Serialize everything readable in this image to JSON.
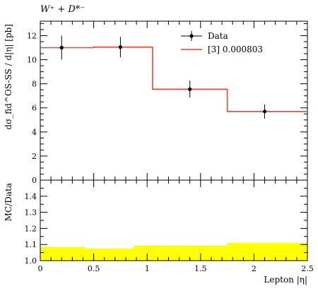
{
  "chart_data": [
    {
      "type": "line",
      "title": "W⁺ + D*⁻",
      "ylabel": "dσ_fid^OS-SS / d|η| [pb]",
      "xlim": [
        0,
        2.5
      ],
      "ylim": [
        0,
        13.2
      ],
      "y_ticks": [
        0,
        2,
        4,
        6,
        8,
        10,
        12
      ],
      "legend_position": "top-right",
      "grid": false,
      "series": [
        {
          "name": "Data",
          "kind": "points",
          "color": "#000000",
          "x": [
            0.2,
            0.75,
            1.4,
            2.1
          ],
          "y": [
            11.0,
            11.05,
            7.55,
            5.7
          ],
          "y_err": [
            1.0,
            0.85,
            0.7,
            0.6
          ]
        },
        {
          "name": "[3] 0.000803",
          "kind": "histogram",
          "color": "#e8452c",
          "bin_edges": [
            0,
            0.5,
            1.05,
            1.75,
            2.5
          ],
          "values": [
            11.0,
            11.05,
            7.55,
            5.7
          ]
        }
      ]
    },
    {
      "type": "area",
      "ylabel": "MC/Data",
      "xlabel": "Lepton |η|",
      "xlim": [
        0,
        2.5
      ],
      "ylim": [
        1.0,
        1.5
      ],
      "x_ticks": [
        "0",
        "0.5",
        "1",
        "1.5",
        "2",
        "2.5"
      ],
      "y_ticks": [
        "1.0",
        "1.1",
        "1.2",
        "1.3",
        "1.4"
      ],
      "band": {
        "color": "#ffff00",
        "bin_edges": [
          0,
          0.42,
          0.87,
          1.75,
          2.5
        ],
        "lower": [
          1.0,
          1.0,
          1.0,
          1.0
        ],
        "upper": [
          1.085,
          1.075,
          1.095,
          1.11
        ]
      }
    }
  ]
}
